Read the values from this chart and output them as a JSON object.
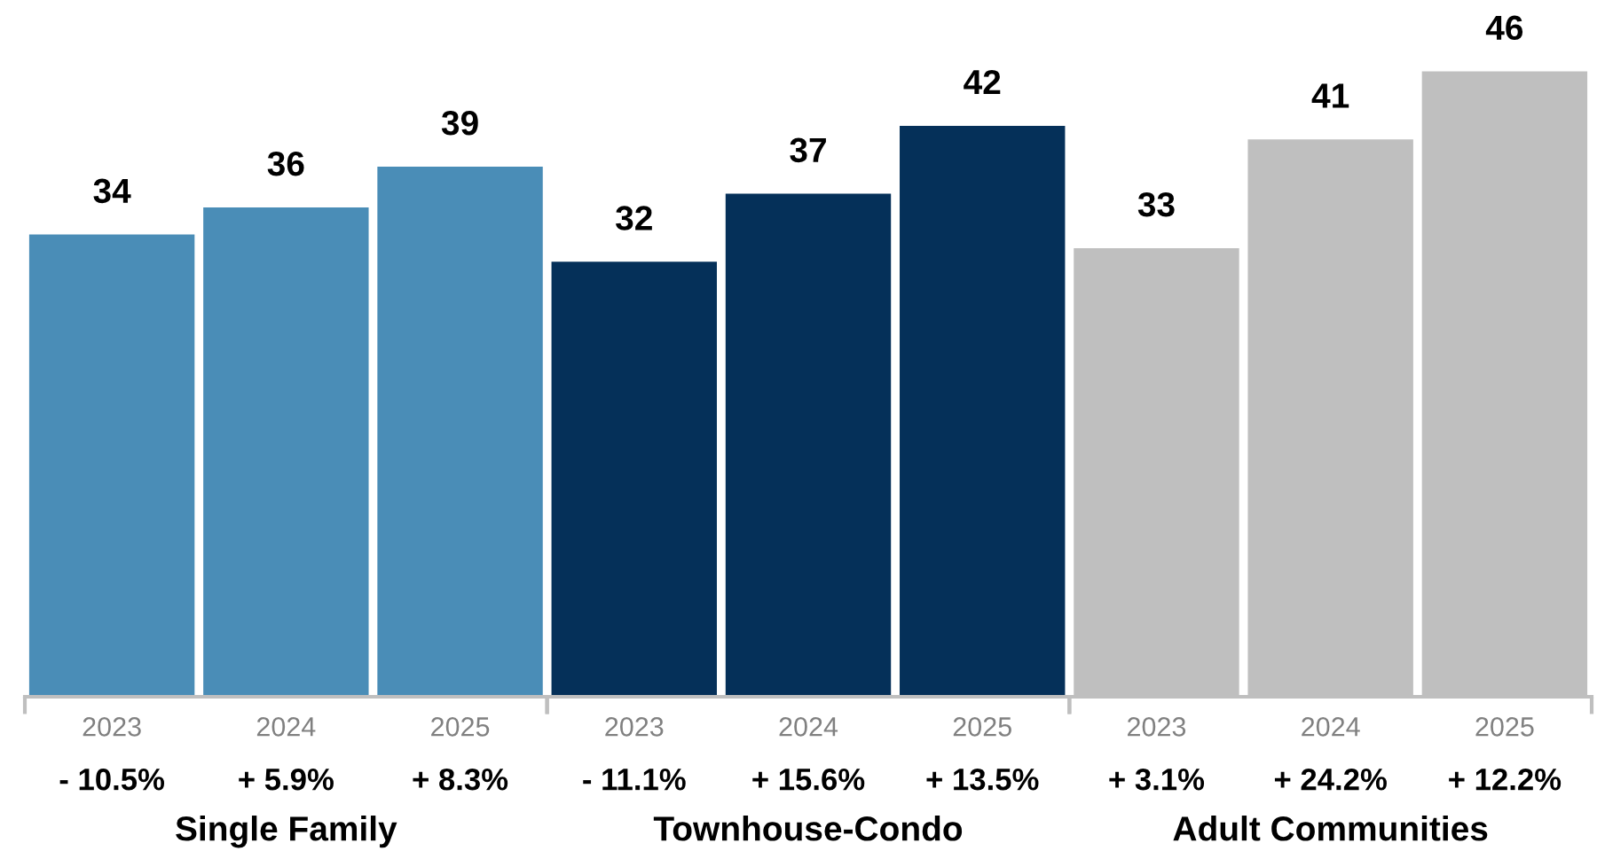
{
  "chart_data": [
    {
      "type": "bar",
      "xlabel": "Single Family",
      "categories": [
        "2023",
        "2024",
        "2025"
      ],
      "values": [
        34,
        36,
        39
      ],
      "colors": [
        "#4a8db7",
        "#4a8db7",
        "#4a8db7"
      ],
      "data_labels": true,
      "annotations": [
        "- 10.5%",
        "+ 5.9%",
        "+ 8.3%"
      ]
    },
    {
      "type": "bar",
      "xlabel": "Townhouse-Condo",
      "categories": [
        "2023",
        "2024",
        "2025"
      ],
      "values": [
        32,
        37,
        42
      ],
      "colors": [
        "#053059",
        "#053059",
        "#053059"
      ],
      "data_labels": true,
      "annotations": [
        "- 11.1%",
        "+ 15.6%",
        "+ 13.5%"
      ]
    },
    {
      "type": "bar",
      "xlabel": "Adult Communities",
      "categories": [
        "2023",
        "2024",
        "2025"
      ],
      "values": [
        33,
        41,
        46
      ],
      "colors": [
        "#bfbfbf",
        "#bfbfbf",
        "#bfbfbf"
      ],
      "data_labels": true,
      "annotations": [
        "+ 3.1%",
        "+ 24.2%",
        "+ 12.2%"
      ]
    }
  ]
}
